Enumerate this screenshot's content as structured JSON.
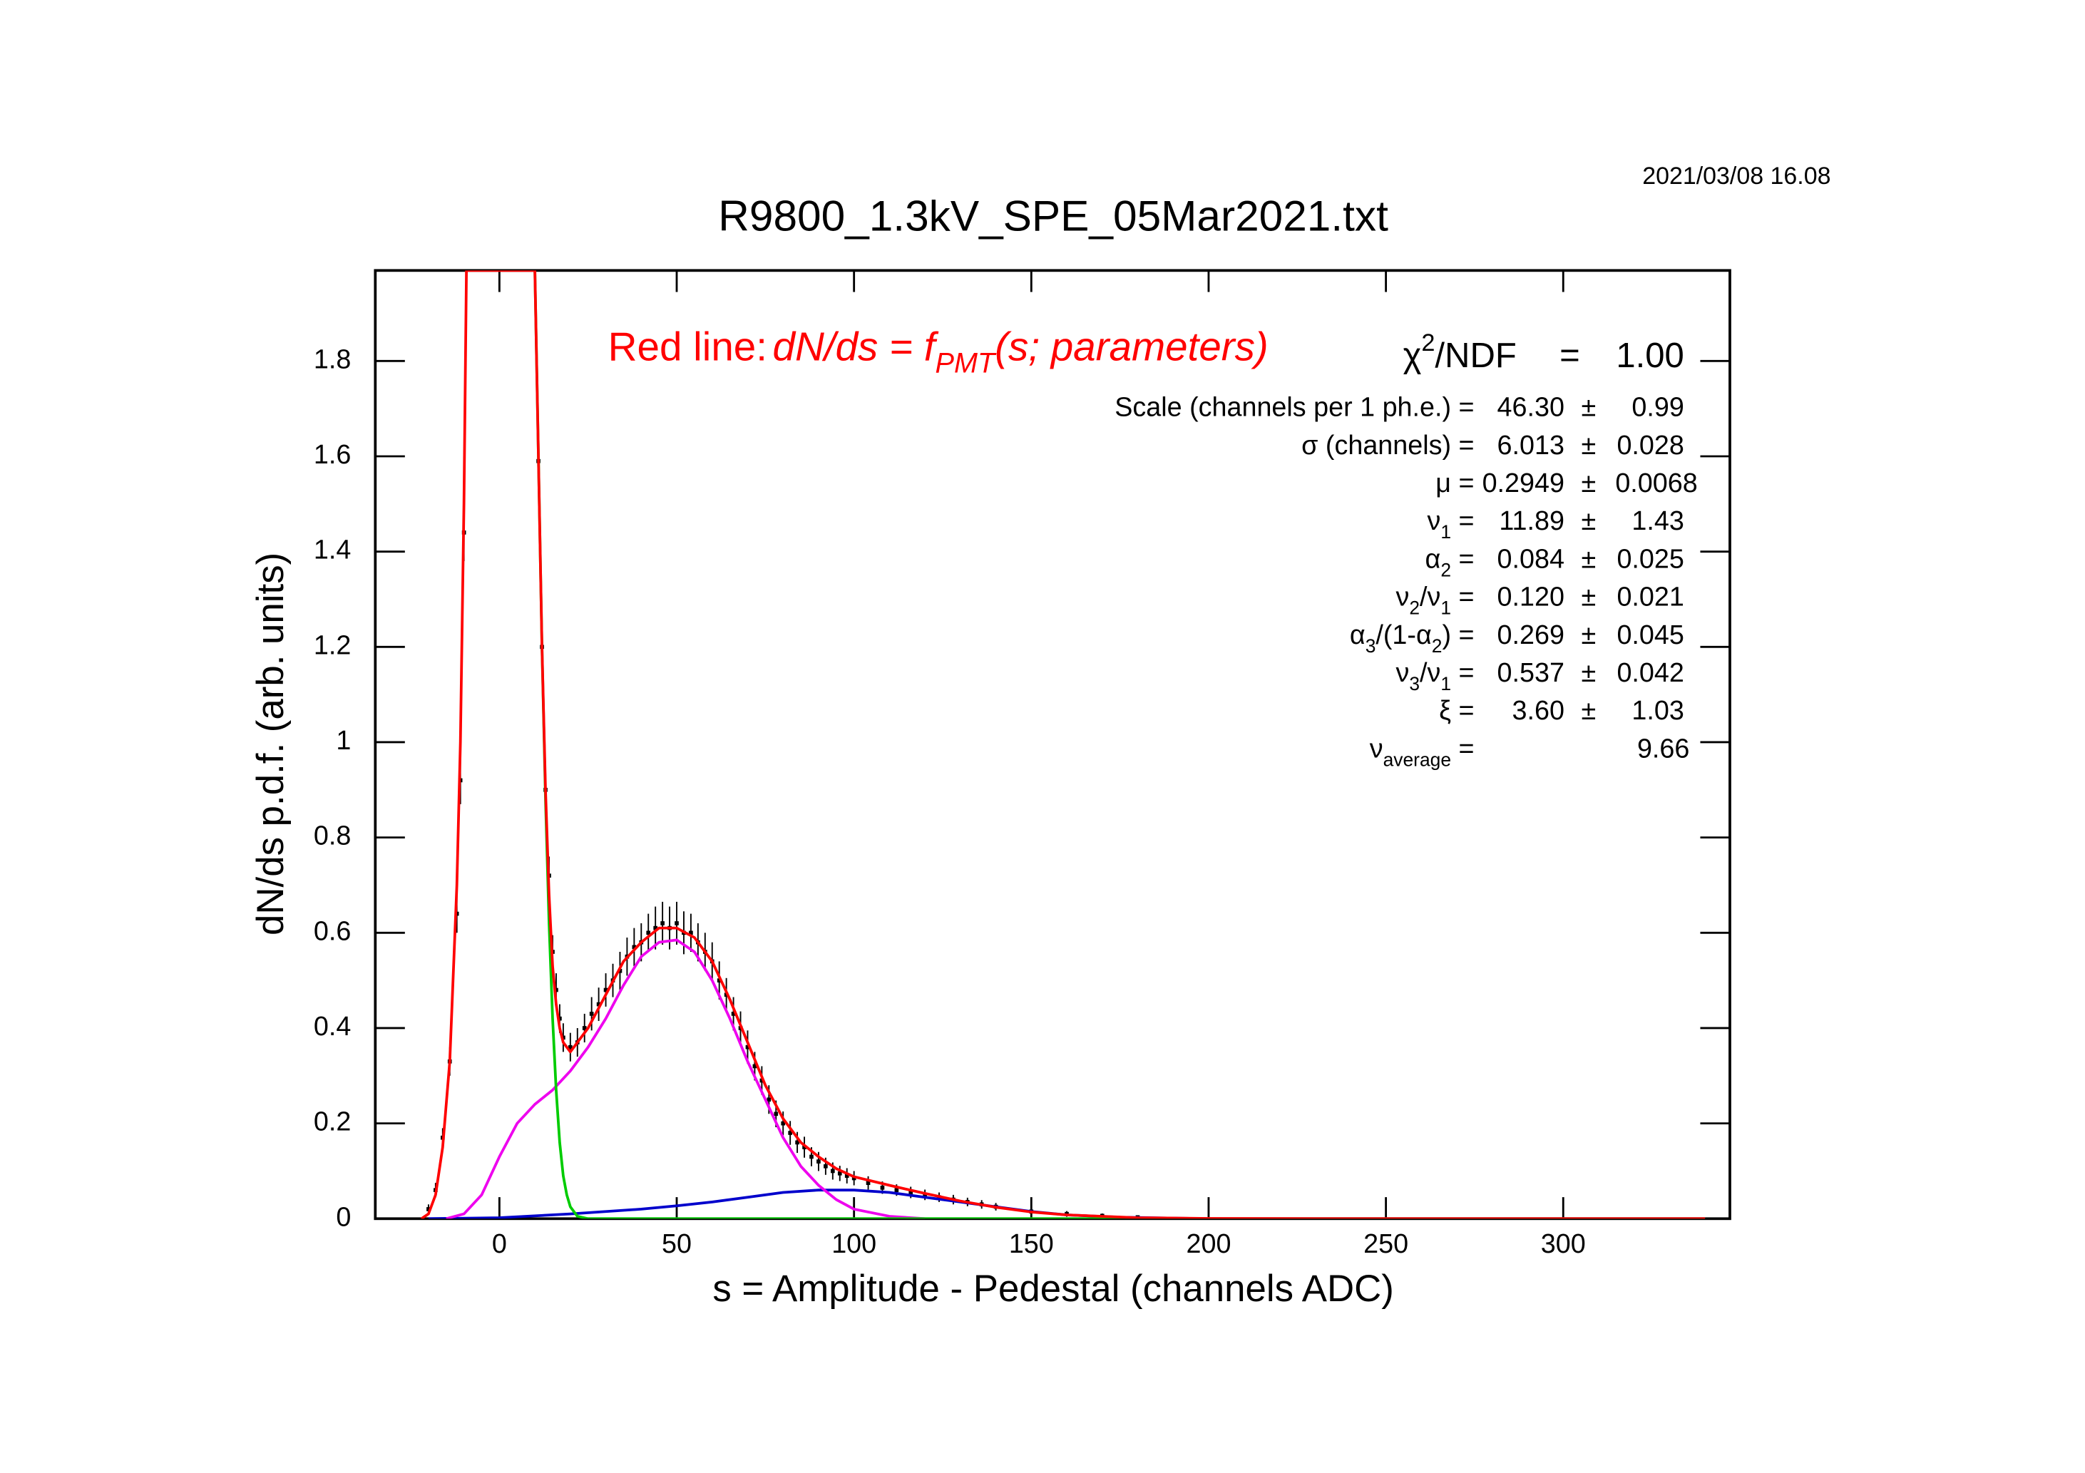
{
  "chart_data": {
    "type": "line",
    "title": "R9800_1.3kV_SPE_05Mar2021.txt",
    "date": "2021/03/08   16.08",
    "x_label": "s = Amplitude - Pedestal (channels ADC)",
    "y_label": "dN/ds p.d.f. (arb. units)",
    "annotation": {
      "prefix": "Red line:",
      "color": "#ff0000",
      "formula": [
        {
          "text": "dN/ds = f"
        },
        {
          "text": "PMT",
          "shift": "sub"
        },
        {
          "text": "(s; parameters)"
        }
      ]
    },
    "xlim": [
      -35,
      347
    ],
    "ylim": [
      0,
      1.99
    ],
    "xticks": [
      0,
      50,
      100,
      150,
      200,
      250,
      300
    ],
    "yticks": [
      0,
      0.2,
      0.4,
      0.6,
      0.8,
      1,
      1.2,
      1.4,
      1.6,
      1.8
    ],
    "data_points": {
      "color": "#000000",
      "x": [
        -20,
        -18,
        -16,
        -14,
        -12,
        -11,
        -10,
        11,
        12,
        13,
        14,
        15,
        16,
        17,
        18,
        20,
        22,
        24,
        26,
        28,
        30,
        32,
        34,
        36,
        38,
        40,
        42,
        44,
        46,
        48,
        50,
        52,
        54,
        56,
        58,
        60,
        62,
        64,
        66,
        68,
        70,
        72,
        74,
        76,
        78,
        80,
        82,
        84,
        86,
        88,
        90,
        92,
        94,
        96,
        98,
        100,
        104,
        108,
        112,
        116,
        120,
        124,
        128,
        132,
        136,
        140,
        150,
        160,
        170,
        180
      ],
      "values": [
        0.02,
        0.06,
        0.17,
        0.33,
        0.64,
        0.92,
        1.44,
        1.59,
        1.2,
        0.9,
        0.72,
        0.56,
        0.48,
        0.42,
        0.38,
        0.36,
        0.37,
        0.4,
        0.43,
        0.45,
        0.48,
        0.5,
        0.52,
        0.55,
        0.57,
        0.58,
        0.6,
        0.61,
        0.62,
        0.61,
        0.62,
        0.6,
        0.6,
        0.58,
        0.56,
        0.54,
        0.5,
        0.47,
        0.43,
        0.4,
        0.36,
        0.32,
        0.29,
        0.25,
        0.22,
        0.2,
        0.18,
        0.16,
        0.15,
        0.13,
        0.12,
        0.11,
        0.1,
        0.095,
        0.09,
        0.085,
        0.075,
        0.065,
        0.06,
        0.055,
        0.05,
        0.045,
        0.04,
        0.035,
        0.03,
        0.025,
        0.015,
        0.01,
        0.006,
        0.003
      ],
      "errors": [
        0.01,
        0.015,
        0.02,
        0.03,
        0.04,
        0.05,
        0.06,
        0.06,
        0.05,
        0.045,
        0.04,
        0.035,
        0.035,
        0.03,
        0.03,
        0.03,
        0.03,
        0.03,
        0.035,
        0.035,
        0.035,
        0.035,
        0.04,
        0.04,
        0.04,
        0.04,
        0.04,
        0.045,
        0.045,
        0.045,
        0.045,
        0.045,
        0.04,
        0.04,
        0.04,
        0.04,
        0.04,
        0.035,
        0.035,
        0.035,
        0.035,
        0.03,
        0.03,
        0.03,
        0.028,
        0.025,
        0.025,
        0.022,
        0.022,
        0.02,
        0.02,
        0.018,
        0.018,
        0.016,
        0.016,
        0.015,
        0.014,
        0.013,
        0.012,
        0.012,
        0.011,
        0.01,
        0.01,
        0.009,
        0.009,
        0.008,
        0.007,
        0.006,
        0.005,
        0.004
      ]
    },
    "series": [
      {
        "name": "blue",
        "color": "#0000cc",
        "x": [
          -20,
          0,
          20,
          40,
          50,
          60,
          70,
          80,
          90,
          100,
          110,
          120,
          130,
          140,
          150,
          160,
          175,
          200,
          340
        ],
        "values": [
          0,
          0.002,
          0.01,
          0.02,
          0.027,
          0.035,
          0.045,
          0.055,
          0.06,
          0.06,
          0.055,
          0.045,
          0.035,
          0.025,
          0.015,
          0.008,
          0.003,
          0,
          0
        ]
      },
      {
        "name": "magenta",
        "color": "#ee00ee",
        "x": [
          -15,
          -10,
          -5,
          0,
          5,
          10,
          15,
          20,
          25,
          30,
          35,
          40,
          45,
          50,
          55,
          60,
          65,
          70,
          75,
          80,
          85,
          90,
          95,
          100,
          110,
          120
        ],
        "values": [
          0,
          0.01,
          0.05,
          0.13,
          0.2,
          0.24,
          0.27,
          0.31,
          0.36,
          0.42,
          0.49,
          0.55,
          0.58,
          0.585,
          0.56,
          0.5,
          0.42,
          0.33,
          0.25,
          0.17,
          0.11,
          0.07,
          0.04,
          0.02,
          0.005,
          0
        ]
      },
      {
        "name": "green",
        "color": "#00cc00",
        "x": [
          10,
          11,
          12,
          13,
          14,
          15,
          16,
          17,
          18,
          19,
          20,
          22,
          25,
          340
        ],
        "values": [
          1.99,
          1.6,
          1.2,
          0.88,
          0.62,
          0.42,
          0.27,
          0.16,
          0.09,
          0.05,
          0.025,
          0.005,
          0,
          0
        ]
      },
      {
        "name": "red",
        "color": "#ff0000",
        "x": [
          -22,
          -20,
          -18,
          -16,
          -14,
          -12,
          -11,
          -10,
          -9.3,
          10,
          11,
          12,
          13,
          14,
          15,
          16,
          17,
          18,
          20,
          22,
          25,
          30,
          35,
          40,
          45,
          50,
          55,
          60,
          65,
          70,
          75,
          80,
          85,
          90,
          95,
          100,
          110,
          120,
          130,
          140,
          150,
          160,
          180,
          200,
          230,
          340
        ],
        "values": [
          0,
          0.01,
          0.05,
          0.15,
          0.33,
          0.7,
          1.0,
          1.5,
          1.99,
          1.99,
          1.6,
          1.2,
          0.9,
          0.68,
          0.53,
          0.45,
          0.4,
          0.37,
          0.35,
          0.37,
          0.4,
          0.47,
          0.54,
          0.58,
          0.61,
          0.61,
          0.59,
          0.54,
          0.46,
          0.37,
          0.28,
          0.21,
          0.16,
          0.13,
          0.105,
          0.088,
          0.07,
          0.053,
          0.037,
          0.024,
          0.014,
          0.008,
          0.002,
          0.0005,
          0,
          0
        ]
      }
    ],
    "chi2": {
      "name": [
        {
          "text": "χ"
        },
        {
          "text": "2",
          "shift": "sup"
        },
        {
          "text": "/NDF"
        }
      ],
      "eq": "=",
      "value": "1.00"
    },
    "parameters": [
      {
        "name": [
          {
            "text": "Scale (channels per 1 ph.e.) ="
          }
        ],
        "value": "46.30",
        "pm": "±",
        "error": "0.99"
      },
      {
        "name": [
          {
            "text": "σ (channels) ="
          }
        ],
        "value": "6.013",
        "pm": "±",
        "error": "0.028"
      },
      {
        "name": [
          {
            "text": "μ  ="
          }
        ],
        "value": "0.2949",
        "pm": "±",
        "error": "0.0068"
      },
      {
        "name": [
          {
            "text": "ν"
          },
          {
            "text": "1",
            "shift": "sub"
          },
          {
            "text": " ="
          }
        ],
        "value": "11.89",
        "pm": "±",
        "error": "1.43"
      },
      {
        "name": [
          {
            "text": "α"
          },
          {
            "text": "2",
            "shift": "sub"
          },
          {
            "text": " ="
          }
        ],
        "value": "0.084",
        "pm": "±",
        "error": "0.025"
      },
      {
        "name": [
          {
            "text": "ν"
          },
          {
            "text": "2",
            "shift": "sub"
          },
          {
            "text": "/ν"
          },
          {
            "text": "1",
            "shift": "sub"
          },
          {
            "text": " ="
          }
        ],
        "value": "0.120",
        "pm": "±",
        "error": "0.021"
      },
      {
        "name": [
          {
            "text": "α"
          },
          {
            "text": "3",
            "shift": "sub"
          },
          {
            "text": "/(1-α"
          },
          {
            "text": "2",
            "shift": "sub"
          },
          {
            "text": ") ="
          }
        ],
        "value": "0.269",
        "pm": "±",
        "error": "0.045"
      },
      {
        "name": [
          {
            "text": "ν"
          },
          {
            "text": "3",
            "shift": "sub"
          },
          {
            "text": "/ν"
          },
          {
            "text": "1",
            "shift": "sub"
          },
          {
            "text": " ="
          }
        ],
        "value": "0.537",
        "pm": "±",
        "error": "0.042"
      },
      {
        "name": [
          {
            "text": "ξ  ="
          }
        ],
        "value": "3.60",
        "pm": "±",
        "error": "1.03"
      },
      {
        "name": [
          {
            "text": "ν"
          },
          {
            "text": "average",
            "shift": "sub"
          },
          {
            "text": "  ="
          }
        ],
        "value": "9.66"
      }
    ]
  }
}
